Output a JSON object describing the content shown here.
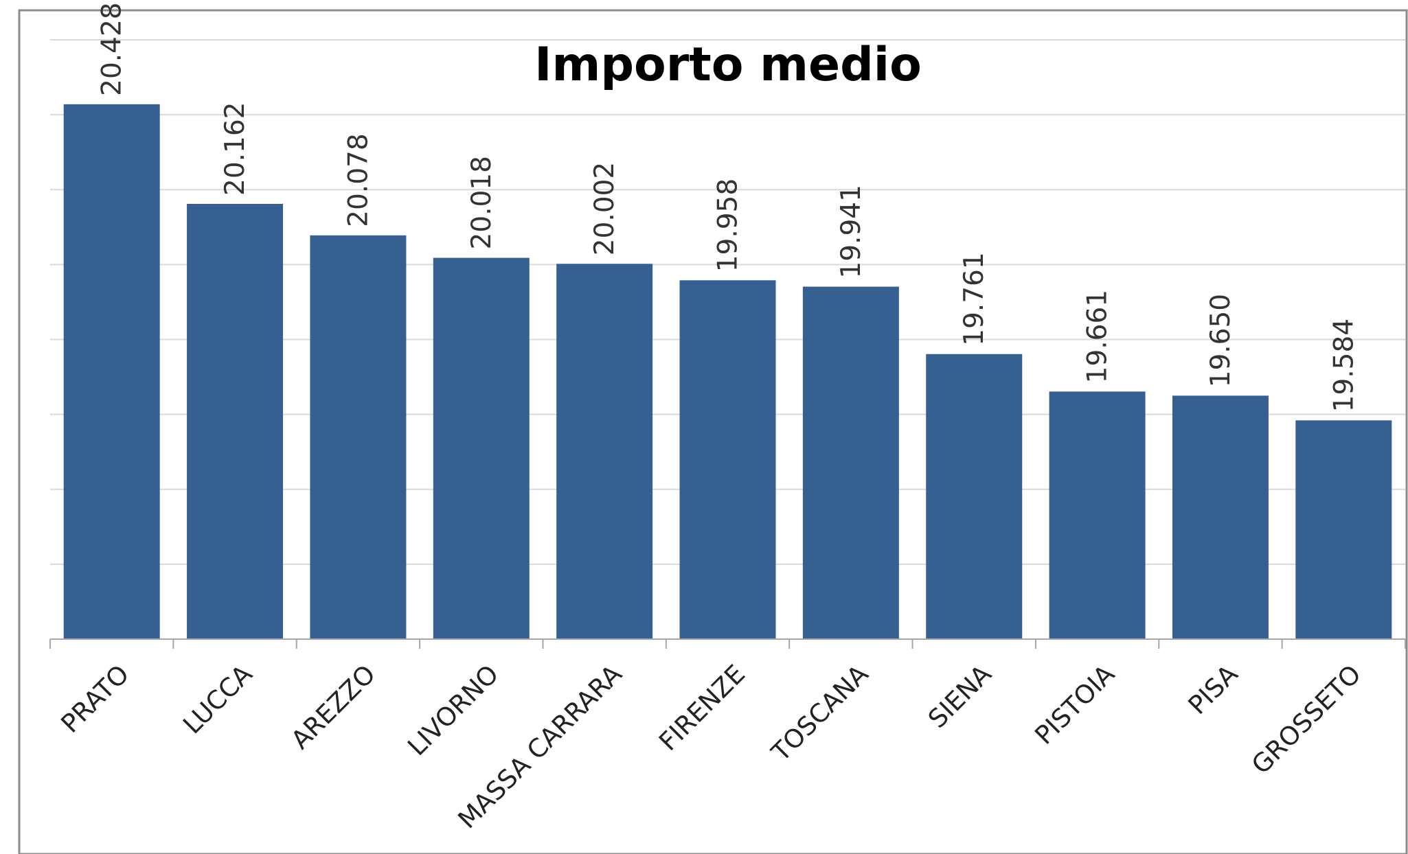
{
  "chart_data": {
    "type": "bar",
    "title": "Importo medio",
    "xlabel": "",
    "ylabel": "",
    "categories": [
      "PRATO",
      "LUCCA",
      "AREZZO",
      "LIVORNO",
      "MASSA CARRARA",
      "FIRENZE",
      "TOSCANA",
      "SIENA",
      "PISTOIA",
      "PISA",
      "GROSSETO"
    ],
    "values": [
      20.428,
      20.162,
      20.078,
      20.018,
      20.002,
      19.958,
      19.941,
      19.761,
      19.661,
      19.65,
      19.584
    ],
    "value_labels": [
      "20.428",
      "20.162",
      "20.078",
      "20.018",
      "20.002",
      "19.958",
      "19.941",
      "19.761",
      "19.661",
      "19.650",
      "19.584"
    ],
    "ylim": [
      19.0,
      20.6
    ],
    "grid": true,
    "y_tick_labels_visible": false,
    "legend": "none"
  },
  "colors": {
    "bar": "#376092",
    "grid": "#d9d9d9",
    "axis": "#a6a6a6",
    "frame": "#8c8c8c"
  }
}
